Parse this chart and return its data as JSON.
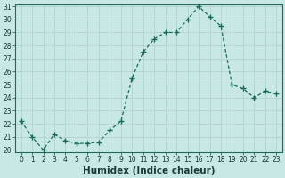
{
  "x": [
    0,
    1,
    2,
    3,
    4,
    5,
    6,
    7,
    8,
    9,
    10,
    11,
    12,
    13,
    14,
    15,
    16,
    17,
    18,
    19,
    20,
    21,
    22,
    23
  ],
  "y": [
    22.2,
    21.0,
    20.0,
    21.2,
    20.7,
    20.5,
    20.5,
    20.6,
    21.5,
    22.2,
    25.5,
    27.5,
    28.5,
    29.0,
    29.0,
    30.0,
    31.0,
    30.2,
    29.5,
    25.0,
    24.7,
    24.0,
    24.5,
    24.3
  ],
  "line_color": "#1a6b5a",
  "marker": "+",
  "marker_size": 4,
  "bg_color": "#c8e8e5",
  "grid_color": "#b0ceca",
  "xlabel": "Humidex (Indice chaleur)",
  "ylim": [
    20,
    31
  ],
  "xlim": [
    -0.5,
    23.5
  ],
  "yticks": [
    20,
    21,
    22,
    23,
    24,
    25,
    26,
    27,
    28,
    29,
    30,
    31
  ],
  "xticks": [
    0,
    1,
    2,
    3,
    4,
    5,
    6,
    7,
    8,
    9,
    10,
    11,
    12,
    13,
    14,
    15,
    16,
    17,
    18,
    19,
    20,
    21,
    22,
    23
  ],
  "tick_fontsize": 5.5,
  "xlabel_fontsize": 7.5,
  "label_color": "#1a3a34"
}
